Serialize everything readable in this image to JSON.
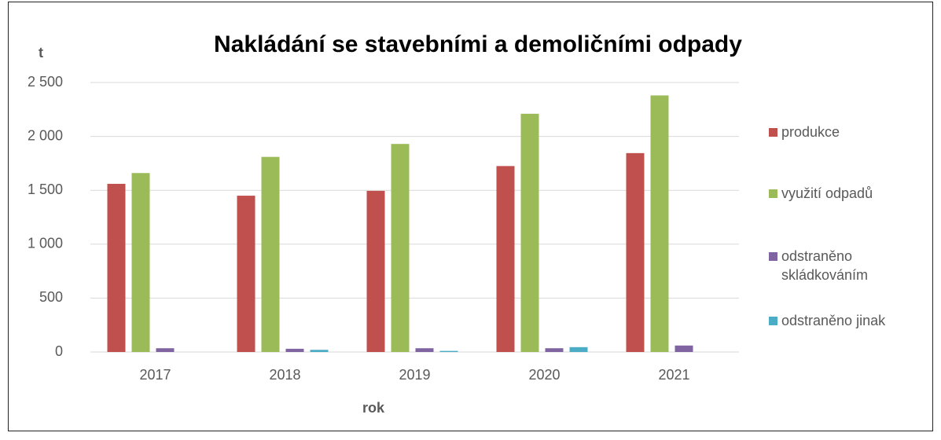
{
  "chart_data": {
    "type": "bar",
    "title": "Nakládání se stavebními a demoličními odpady",
    "y_label": "t",
    "x_label": "rok",
    "categories": [
      "2017",
      "2018",
      "2019",
      "2020",
      "2021"
    ],
    "series": [
      {
        "name": "produkce",
        "color": "#c0504d",
        "values": [
          1560,
          1450,
          1495,
          1725,
          1845
        ]
      },
      {
        "name": "využití odpadů",
        "color": "#9bbb59",
        "values": [
          1660,
          1810,
          1930,
          2210,
          2380
        ]
      },
      {
        "name": "odstraněno skládkováním",
        "color": "#8064a2",
        "values": [
          35,
          30,
          35,
          35,
          60
        ]
      },
      {
        "name": "odstraněno jinak",
        "color": "#4bacc6",
        "values": [
          0,
          20,
          10,
          45,
          0
        ]
      }
    ],
    "ylim": [
      0,
      2500
    ],
    "yticks": [
      0,
      500,
      {
        "value": 1000,
        "label": "1 000"
      },
      {
        "value": 1500,
        "label": "1 500"
      },
      {
        "value": 2000,
        "label": "2 000"
      },
      {
        "value": 2500,
        "label": "2 500"
      }
    ],
    "grid": true,
    "legend": "right"
  }
}
